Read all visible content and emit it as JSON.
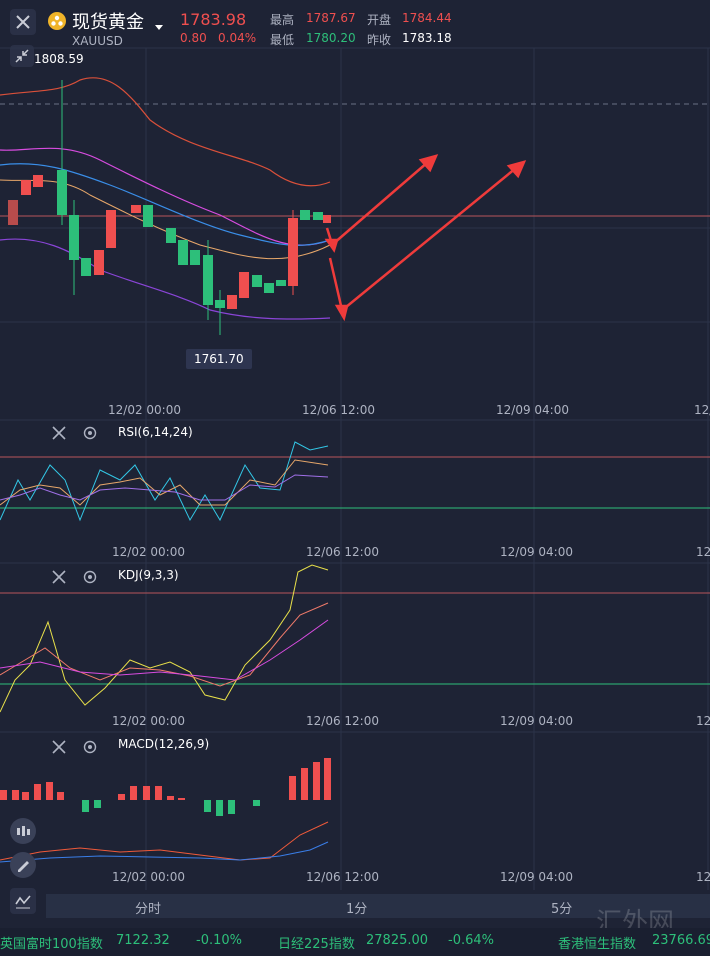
{
  "header": {
    "title": "现货黄金",
    "symbol": "XAUUSD",
    "price": "1783.98",
    "change": "0.80",
    "change_pct": "0.04%",
    "high_label": "最高",
    "high": "1787.67",
    "open_label": "开盘",
    "open": "1784.44",
    "low_label": "最低",
    "low": "1780.20",
    "prev_label": "昨收",
    "prev": "1783.18"
  },
  "main_chart": {
    "max_label": "1808.59",
    "min_label": "1761.70",
    "x_ticks": [
      "12/02 00:00",
      "12/06 12:00",
      "12/09 04:00",
      "12/"
    ]
  },
  "rsi": {
    "name": "RSI(6,14,24)",
    "x_ticks": [
      "12/02 00:00",
      "12/06 12:00",
      "12/09 04:00",
      "12/"
    ]
  },
  "kdj": {
    "name": "KDJ(9,3,3)",
    "x_ticks": [
      "12/02 00:00",
      "12/06 12:00",
      "12/09 04:00",
      "12/"
    ]
  },
  "macd": {
    "name": "MACD(12,26,9)",
    "x_ticks": [
      "12/02 00:00",
      "12/06 12:00",
      "12/09 04:00",
      "12/"
    ]
  },
  "tabs": [
    "分时",
    "1分",
    "5分"
  ],
  "ticker": [
    {
      "name": "英国富时100指数",
      "value": "7122.32",
      "change": "-0.10%"
    },
    {
      "name": "日经225指数",
      "value": "27825.00",
      "change": "-0.64%"
    },
    {
      "name": "香港恒生指数",
      "value": "23766.69",
      "change": ""
    }
  ],
  "watermark": "汇外网",
  "colors": {
    "up": "#ef4f4f",
    "down": "#2dbf7a",
    "bg": "#1e2335"
  },
  "icons": [
    "close-icon",
    "gold-coin-icon",
    "dropdown-caret-icon",
    "collapse-icon",
    "settings-icon",
    "candle-type-icon",
    "draw-tool-icon",
    "indicator-icon"
  ]
}
